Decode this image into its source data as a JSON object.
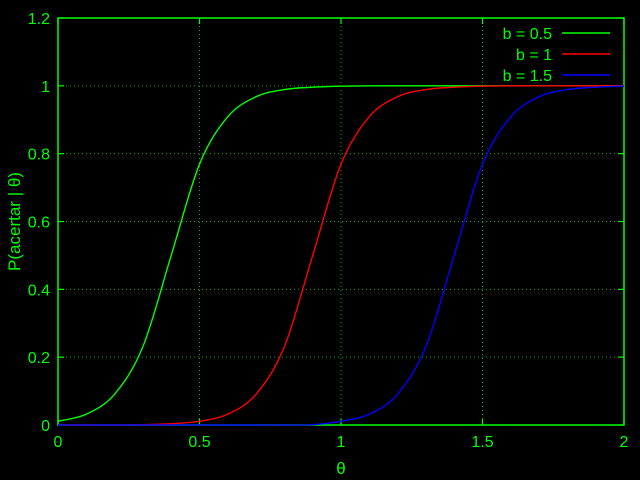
{
  "chart_data": {
    "type": "line",
    "title": "",
    "xlabel": "θ",
    "ylabel": "P(acertar | θ)",
    "xlim": [
      0,
      2
    ],
    "ylim": [
      0,
      1.2
    ],
    "x_ticks": [
      0,
      0.5,
      1,
      1.5,
      2
    ],
    "y_ticks": [
      0,
      0.2,
      0.4,
      0.6,
      0.8,
      1,
      1.2
    ],
    "x_tick_labels": [
      "0",
      "0.5",
      "1",
      "1.5",
      "2"
    ],
    "y_tick_labels": [
      "0",
      "0.2",
      "0.4",
      "0.6",
      "0.8",
      "1",
      "1.2"
    ],
    "grid": true,
    "legend_position": "top-right",
    "x": [
      0,
      0.1,
      0.2,
      0.3,
      0.4,
      0.5,
      0.6,
      0.7,
      0.8,
      0.9,
      1.0,
      1.1,
      1.2,
      1.3,
      1.4,
      1.5,
      1.6,
      1.7,
      1.8,
      1.9,
      2.0
    ],
    "series": [
      {
        "name": "b = 0.5",
        "color": "#00ff00",
        "values": [
          0.011,
          0.032,
          0.091,
          0.231,
          0.5,
          0.769,
          0.909,
          0.968,
          0.989,
          0.996,
          0.999,
          1,
          1,
          1,
          1,
          1,
          1,
          1,
          1,
          1,
          1
        ]
      },
      {
        "name": "b = 1",
        "color": "#ff0000",
        "values": [
          0,
          0,
          0,
          0.001,
          0.004,
          0.011,
          0.032,
          0.091,
          0.231,
          0.5,
          0.769,
          0.909,
          0.968,
          0.989,
          0.996,
          0.999,
          1,
          1,
          1,
          1,
          1
        ]
      },
      {
        "name": "b = 1.5",
        "color": "#0000ff",
        "values": [
          0,
          0,
          0,
          0,
          0,
          0,
          0,
          0,
          0,
          0.001,
          0.011,
          0.032,
          0.091,
          0.231,
          0.5,
          0.769,
          0.909,
          0.968,
          0.989,
          0.996,
          0.999
        ]
      }
    ]
  },
  "colors": {
    "background": "#000000",
    "text": "#00ff00",
    "axis": "#00ff00",
    "grid": "#00ff00"
  }
}
